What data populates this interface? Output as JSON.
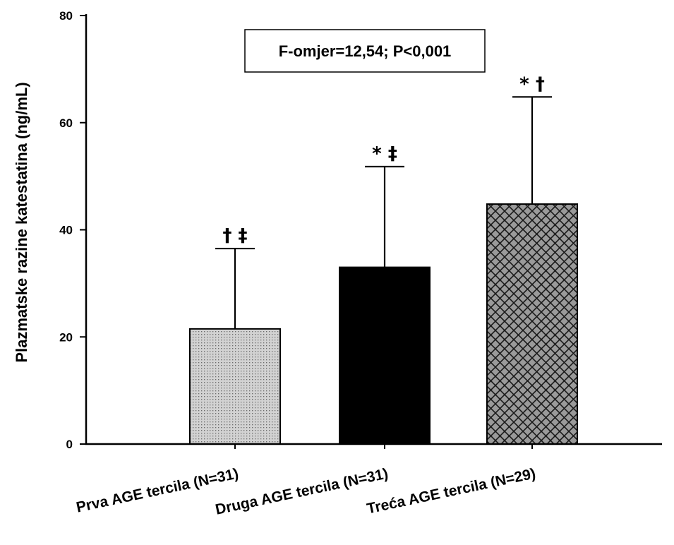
{
  "chart_data": {
    "type": "bar",
    "title": "",
    "xlabel": "",
    "ylabel": "Plazmatske razine katestatina (ng/mL)",
    "ylim": [
      0,
      80
    ],
    "yticks": [
      0,
      20,
      40,
      60,
      80
    ],
    "grid": false,
    "categories": [
      "Prva AGE tercila (N=31)",
      "Druga AGE tercila (N=31)",
      "Treća AGE tercila (N=29)"
    ],
    "values": [
      21.5,
      33.0,
      44.8
    ],
    "errors": [
      15.0,
      18.8,
      20.0
    ],
    "significance": [
      "† ‡",
      "* ‡",
      "* †"
    ],
    "bar_styles": [
      "dotted-gray",
      "solid-black",
      "crosshatch-gray"
    ],
    "annotation": "F-omjer=12,54; P<0,001"
  }
}
